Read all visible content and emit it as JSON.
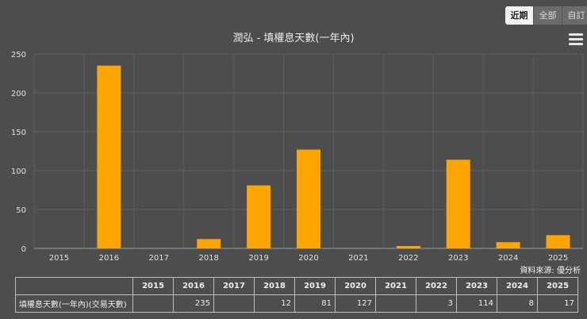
{
  "range_buttons": [
    {
      "label": "近期",
      "active": true
    },
    {
      "label": "全部",
      "active": false
    },
    {
      "label": "自訂",
      "active": false
    }
  ],
  "chart_data": {
    "type": "bar",
    "title": "潤弘 - 填權息天數(一年內)",
    "categories": [
      "2015",
      "2016",
      "2017",
      "2018",
      "2019",
      "2020",
      "2021",
      "2022",
      "2023",
      "2024",
      "2025"
    ],
    "values": [
      null,
      235,
      null,
      12,
      81,
      127,
      null,
      3,
      114,
      8,
      17
    ],
    "ylim": [
      0,
      250
    ],
    "yticks": [
      0,
      50,
      100,
      150,
      200,
      250
    ],
    "bar_color": "#ffa500",
    "grid": true
  },
  "source_text": "資料來源: 優分析",
  "table": {
    "row_label": "填權息天數(一年內)(交易天數)",
    "cells": [
      "",
      "235",
      "",
      "12",
      "81",
      "127",
      "",
      "3",
      "114",
      "8",
      "17"
    ]
  },
  "colors": {
    "background": "#4d4d4d",
    "grid": "#5e5e5e",
    "bar": "#ffa500"
  }
}
